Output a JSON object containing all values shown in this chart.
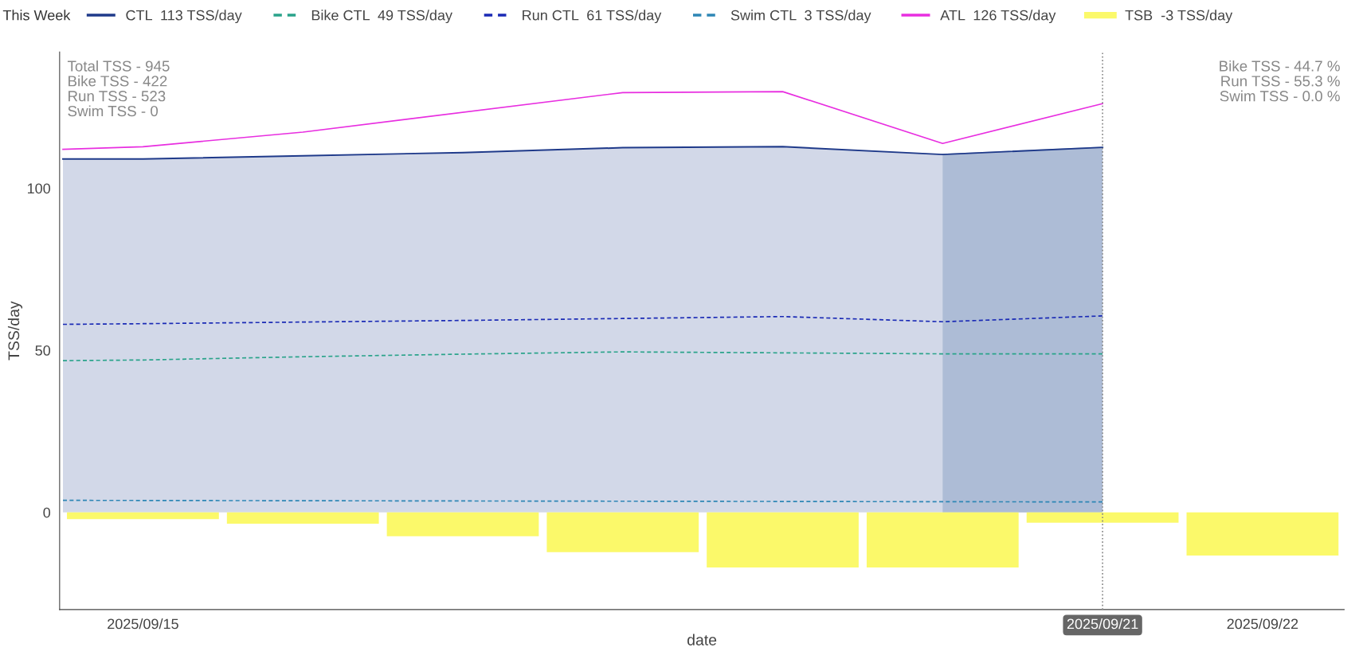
{
  "chart_data": {
    "type": "line",
    "xlabel": "date",
    "ylabel": "TSS/day",
    "legend_title": "This Week",
    "legend": "top",
    "grid": false,
    "xlim": [
      "2025-09-14T11:30",
      "2025-09-22T12:15"
    ],
    "ylim": [
      -30,
      142
    ],
    "xticks": [
      {
        "value": "2025-09-15",
        "label": "2025/09/15"
      },
      {
        "value": "2025-09-21",
        "label": "2025/09/21"
      },
      {
        "value": "2025-09-22",
        "label": "2025/09/22"
      }
    ],
    "yticks": [
      0,
      50,
      100
    ],
    "ref_lines": [
      {
        "axis": "x",
        "value": "2025-09-21",
        "color": "#888888",
        "line_style": "dotted"
      }
    ],
    "annotations": [
      "Total TSS - 945\nBike TSS - 422\nRun TSS - 523\nSwim TSS - 0",
      "Bike TSS - 44.7 %\nRun TSS - 55.3 %\nSwim TSS - 0.0 %"
    ],
    "series": [
      {
        "name": "CTL  113 TSS/day",
        "type": "area",
        "color": "#1f3a8a",
        "x": [
          "2025-09-14T12:00",
          "2025-09-15",
          "2025-09-16",
          "2025-09-17",
          "2025-09-18",
          "2025-09-19",
          "2025-09-20",
          "2025-09-21"
        ],
        "values": [
          109,
          109,
          110,
          111,
          112.5,
          112.8,
          110.4,
          112.6
        ]
      },
      {
        "type": "area",
        "color": "#adbcd6",
        "x": [
          "2025-09-20",
          "2025-09-21"
        ],
        "values": [
          110.4,
          112.6
        ]
      },
      {
        "name": "Bike CTL  49 TSS/day",
        "line_style": "dashed",
        "color": "#2aa38a",
        "x": [
          "2025-09-14T12:00",
          "2025-09-15",
          "2025-09-16",
          "2025-09-17",
          "2025-09-18",
          "2025-09-19",
          "2025-09-20",
          "2025-09-21"
        ],
        "values": [
          46.8,
          47,
          48,
          48.8,
          49.5,
          49.2,
          48.9,
          48.9
        ]
      },
      {
        "name": "Run CTL  61 TSS/day",
        "line_style": "dashed",
        "color": "#1a2ab5",
        "x": [
          "2025-09-14T12:00",
          "2025-09-15",
          "2025-09-16",
          "2025-09-17",
          "2025-09-18",
          "2025-09-19",
          "2025-09-20",
          "2025-09-21"
        ],
        "values": [
          58,
          58.2,
          58.7,
          59.2,
          59.8,
          60.4,
          58.8,
          60.6
        ]
      },
      {
        "name": "Swim CTL  3 TSS/day",
        "line_style": "dashed",
        "color": "#2e86b5",
        "x": [
          "2025-09-14T12:00",
          "2025-09-21"
        ],
        "values": [
          3.7,
          3.2
        ]
      },
      {
        "name": "ATL  126 TSS/day",
        "line_style": "solid",
        "color": "#e82ee0",
        "x": [
          "2025-09-14T12:00",
          "2025-09-15",
          "2025-09-16",
          "2025-09-18",
          "2025-09-19",
          "2025-09-20",
          "2025-09-21"
        ],
        "values": [
          112,
          112.8,
          117.3,
          129.5,
          129.8,
          113.8,
          126.1
        ]
      },
      {
        "name": "TSB  -3 TSS/day",
        "type": "bar",
        "color": "#fbf96a",
        "x": [
          "2025-09-15",
          "2025-09-16",
          "2025-09-17",
          "2025-09-18",
          "2025-09-19",
          "2025-09-20",
          "2025-09-21",
          "2025-09-22"
        ],
        "values": [
          -2.1,
          -3.5,
          -7.4,
          -12.3,
          -17,
          -17,
          -3.2,
          -13.3
        ]
      }
    ]
  }
}
